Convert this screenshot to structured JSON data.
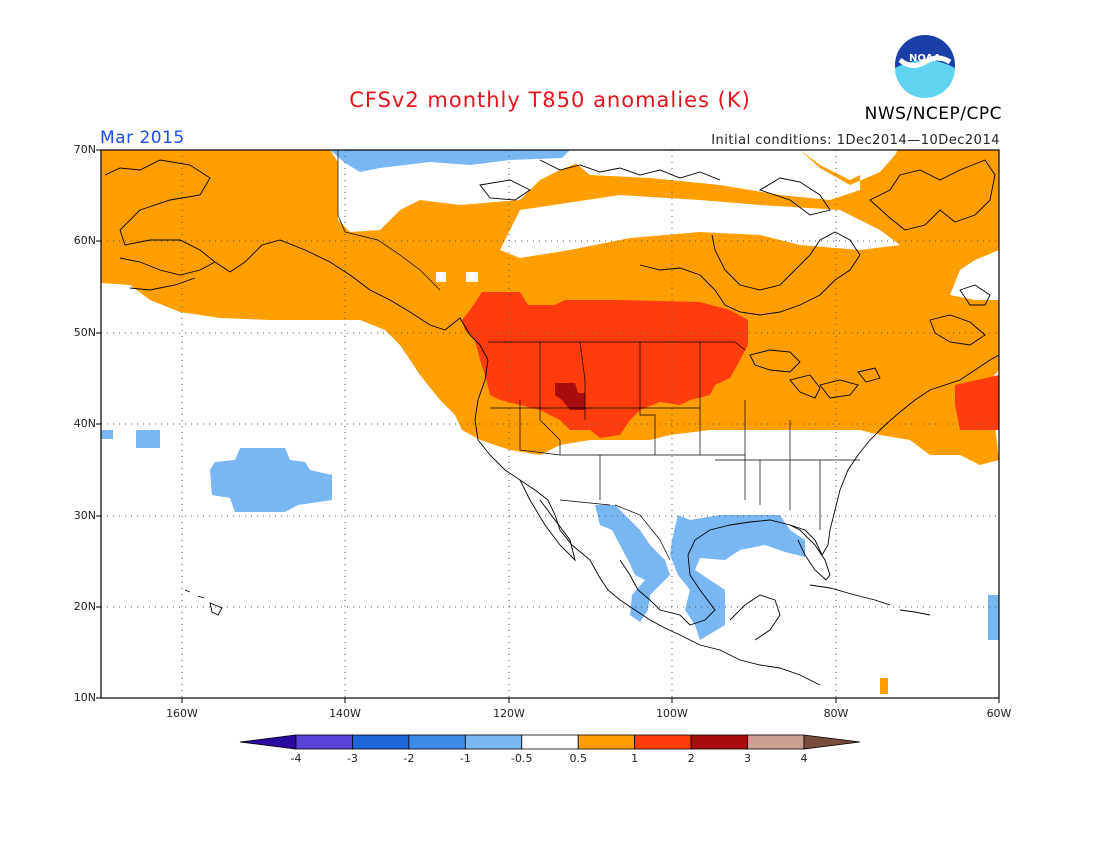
{
  "header": {
    "title": "CFSv2 monthly T850 anomalies (K)",
    "agency": "NWS/NCEP/CPC",
    "period": "Mar 2015",
    "initial_conditions": "Initial conditions: 1Dec2014—10Dec2014"
  },
  "logo": {
    "text": "NOAA"
  },
  "map": {
    "lat_range": [
      10,
      70
    ],
    "lon_range": [
      -172,
      -60
    ],
    "lat_ticks": [
      "10N",
      "20N",
      "30N",
      "40N",
      "50N",
      "60N",
      "70N"
    ],
    "lon_ticks": [
      "160W",
      "140W",
      "120W",
      "100W",
      "80W",
      "60W"
    ],
    "grid": true
  },
  "colorbar": {
    "labels": [
      "-4",
      "-3",
      "-2",
      "-1",
      "-0.5",
      "0.5",
      "1",
      "2",
      "3",
      "4"
    ],
    "colors": [
      "#2a0aa0",
      "#5642d4",
      "#1f66d6",
      "#3c8ae8",
      "#78b7f2",
      "#ffffff",
      "#ff9e00",
      "#ff3c0e",
      "#a80c0c",
      "#cca090",
      "#7a4c3c"
    ]
  },
  "colors": {
    "warm_weak": "#ff9e00",
    "warm_mod": "#ff3c0e",
    "warm_strong": "#a80c0c",
    "cool_weak": "#78b7f2",
    "title": "#e8121b",
    "period": "#1a4cf0"
  }
}
